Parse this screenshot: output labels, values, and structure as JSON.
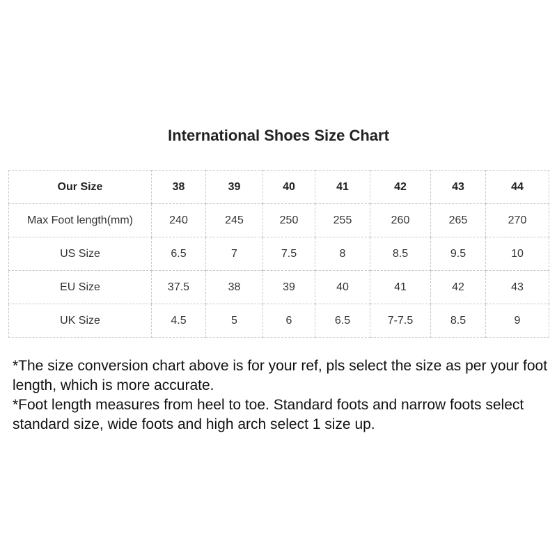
{
  "title": "International Shoes Size Chart",
  "table": {
    "rows": [
      {
        "label": "Our Size",
        "values": [
          "38",
          "39",
          "40",
          "41",
          "42",
          "43",
          "44"
        ]
      },
      {
        "label": "Max Foot length(mm)",
        "values": [
          "240",
          "245",
          "250",
          "255",
          "260",
          "265",
          "270"
        ]
      },
      {
        "label": "US Size",
        "values": [
          "6.5",
          "7",
          "7.5",
          "8",
          "8.5",
          "9.5",
          "10"
        ]
      },
      {
        "label": "EU Size",
        "values": [
          "37.5",
          "38",
          "39",
          "40",
          "41",
          "42",
          "43"
        ]
      },
      {
        "label": "UK Size",
        "values": [
          "4.5",
          "5",
          "6",
          "6.5",
          "7-7.5",
          "8.5",
          "9"
        ]
      }
    ]
  },
  "notes": [
    "*The size conversion chart above  is for your ref,  pls select the size as per your foot length, which is more accurate.",
    "*Foot length measures from heel to toe. Standard foots and narrow foots select standard size, wide foots and high arch select 1 size up."
  ]
}
